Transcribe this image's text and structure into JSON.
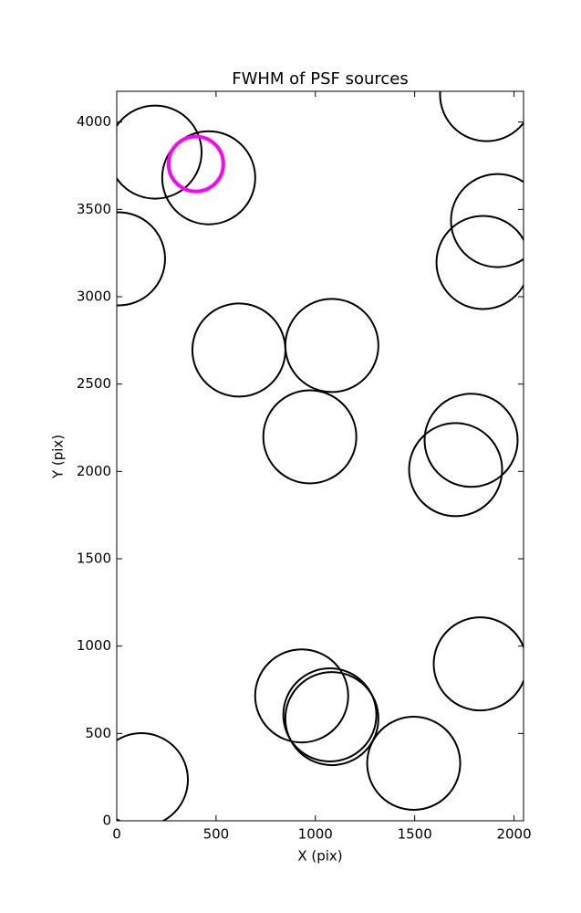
{
  "chart_data": {
    "type": "scatter",
    "title": "FWHM of PSF sources",
    "x_label": "X (pix)",
    "y_label": "Y (pix)",
    "xlim": [
      0,
      2048
    ],
    "ylim": [
      0,
      4176
    ],
    "xticks": [
      0,
      500,
      1000,
      1500,
      2000
    ],
    "yticks": [
      0,
      500,
      1000,
      1500,
      2000,
      2500,
      3000,
      3500,
      4000
    ],
    "grid": false,
    "series": [
      {
        "color": "#000000",
        "marker": "open-circle",
        "marker_size": 51,
        "line_width": 2,
        "x": [
          193,
          463,
          9,
          1862,
          1917,
          1844,
          615,
          1083,
          972,
          1784,
          1706,
          1830,
          931,
          1073,
          1083,
          1495,
          124
        ],
        "values": [
          3828,
          3681,
          3217,
          4157,
          3436,
          3196,
          2695,
          2721,
          2198,
          2178,
          2010,
          898,
          715,
          606,
          585,
          329,
          235
        ]
      },
      {
        "color": "#ff00ff",
        "marker": "open-circle",
        "marker_size": 30,
        "line_width": 4,
        "x": [
          399
        ],
        "values": [
          3760
        ]
      }
    ]
  }
}
